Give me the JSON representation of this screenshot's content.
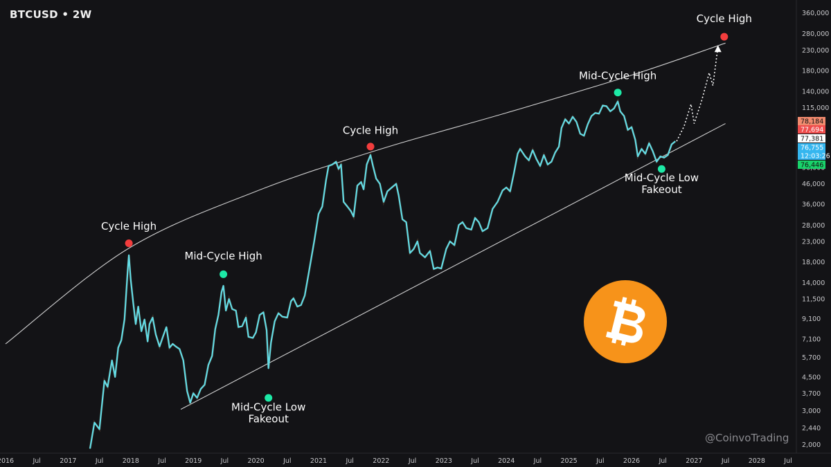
{
  "header": {
    "title": "BTCUSD • 2W"
  },
  "watermark": "@CoinvoTrading",
  "colors": {
    "background": "#131316",
    "price": "#62dce6",
    "cycle_high": "#f23d3d",
    "mid_cycle": "#1de9a6",
    "trendline": "#e6e6e6",
    "bitcoin": "#f7931a"
  },
  "logo_icon": "bitcoin-logo-icon",
  "chart_data": {
    "type": "line",
    "y_scale": "log",
    "ylim": [
      1800,
      420000
    ],
    "xlim": [
      2016.0,
      2028.5
    ],
    "y_ticks": [
      "360,000",
      "280,000",
      "230,000",
      "180,000",
      "140,000",
      "115,000",
      "56,000",
      "46,000",
      "36,000",
      "28,000",
      "23,000",
      "18,000",
      "14,000",
      "11,500",
      "9,100",
      "7,100",
      "5,700",
      "4,500",
      "3,700",
      "3,000",
      "2,440",
      "2,000"
    ],
    "x_ticks": [
      {
        "t": 2016.0,
        "label": "2016"
      },
      {
        "t": 2016.5,
        "label": "Jul"
      },
      {
        "t": 2017.0,
        "label": "2017"
      },
      {
        "t": 2017.5,
        "label": "Jul"
      },
      {
        "t": 2018.0,
        "label": "2018"
      },
      {
        "t": 2018.5,
        "label": "Jul"
      },
      {
        "t": 2019.0,
        "label": "2019"
      },
      {
        "t": 2019.5,
        "label": "Jul"
      },
      {
        "t": 2020.0,
        "label": "2020"
      },
      {
        "t": 2020.5,
        "label": "Jul"
      },
      {
        "t": 2021.0,
        "label": "2021"
      },
      {
        "t": 2021.5,
        "label": "Jul"
      },
      {
        "t": 2022.0,
        "label": "2022"
      },
      {
        "t": 2022.5,
        "label": "Jul"
      },
      {
        "t": 2023.0,
        "label": "2023"
      },
      {
        "t": 2023.5,
        "label": "Jul"
      },
      {
        "t": 2024.0,
        "label": "2024"
      },
      {
        "t": 2024.5,
        "label": "Jul"
      },
      {
        "t": 2025.0,
        "label": "2025"
      },
      {
        "t": 2025.5,
        "label": "Jul"
      },
      {
        "t": 2026.0,
        "label": "2026"
      },
      {
        "t": 2026.5,
        "label": "Jul"
      },
      {
        "t": 2027.0,
        "label": "2027"
      },
      {
        "t": 2027.5,
        "label": "Jul"
      },
      {
        "t": 2028.0,
        "label": "2028"
      },
      {
        "t": 2028.5,
        "label": "Jul"
      }
    ],
    "price_badges": [
      {
        "label": "78,184",
        "y": 78184,
        "bg": "#f08a6e",
        "fg": "#111111"
      },
      {
        "label": "77,694",
        "y": 77694,
        "bg": "#ef4d4d",
        "fg": "#ffffff"
      },
      {
        "label": "77,381",
        "y": 77381,
        "bg": "#ffffff",
        "fg": "#111111"
      },
      {
        "label": "76,755",
        "y": 76755,
        "bg": "#35b6ef",
        "fg": "#ffffff"
      },
      {
        "label": "12:03:26",
        "y": 76000,
        "bg": "#35b6ef",
        "fg": "#ffffff"
      },
      {
        "label": "76,446",
        "y": 76446,
        "bg": "#19d36b",
        "fg": "#111111"
      }
    ],
    "series": [
      {
        "values": [
          [
            2017.35,
            1900
          ],
          [
            2017.42,
            2600
          ],
          [
            2017.5,
            2400
          ],
          [
            2017.58,
            4300
          ],
          [
            2017.63,
            4000
          ],
          [
            2017.7,
            5500
          ],
          [
            2017.75,
            4500
          ],
          [
            2017.8,
            6400
          ],
          [
            2017.85,
            7000
          ],
          [
            2017.9,
            9000
          ],
          [
            2017.95,
            16000
          ],
          [
            2017.97,
            19500
          ],
          [
            2018.0,
            14500
          ],
          [
            2018.04,
            11000
          ],
          [
            2018.08,
            8500
          ],
          [
            2018.12,
            10500
          ],
          [
            2018.17,
            7800
          ],
          [
            2018.22,
            9000
          ],
          [
            2018.27,
            6900
          ],
          [
            2018.3,
            8500
          ],
          [
            2018.35,
            9200
          ],
          [
            2018.4,
            7500
          ],
          [
            2018.46,
            6500
          ],
          [
            2018.52,
            7400
          ],
          [
            2018.57,
            8200
          ],
          [
            2018.62,
            6400
          ],
          [
            2018.67,
            6700
          ],
          [
            2018.72,
            6500
          ],
          [
            2018.78,
            6300
          ],
          [
            2018.84,
            5500
          ],
          [
            2018.9,
            3800
          ],
          [
            2018.95,
            3300
          ],
          [
            2019.0,
            3700
          ],
          [
            2019.06,
            3500
          ],
          [
            2019.12,
            3900
          ],
          [
            2019.18,
            4100
          ],
          [
            2019.24,
            5200
          ],
          [
            2019.3,
            5800
          ],
          [
            2019.35,
            8000
          ],
          [
            2019.4,
            9500
          ],
          [
            2019.45,
            12500
          ],
          [
            2019.48,
            13500
          ],
          [
            2019.52,
            10000
          ],
          [
            2019.57,
            11500
          ],
          [
            2019.62,
            10200
          ],
          [
            2019.68,
            10000
          ],
          [
            2019.72,
            8200
          ],
          [
            2019.78,
            8300
          ],
          [
            2019.84,
            9200
          ],
          [
            2019.88,
            7300
          ],
          [
            2019.95,
            7200
          ],
          [
            2020.0,
            7700
          ],
          [
            2020.06,
            9500
          ],
          [
            2020.12,
            9800
          ],
          [
            2020.17,
            7900
          ],
          [
            2020.2,
            5000
          ],
          [
            2020.24,
            6800
          ],
          [
            2020.3,
            8800
          ],
          [
            2020.36,
            9700
          ],
          [
            2020.42,
            9300
          ],
          [
            2020.5,
            9200
          ],
          [
            2020.56,
            11200
          ],
          [
            2020.6,
            11600
          ],
          [
            2020.66,
            10500
          ],
          [
            2020.72,
            10700
          ],
          [
            2020.78,
            12000
          ],
          [
            2020.84,
            15500
          ],
          [
            2020.88,
            18500
          ],
          [
            2020.93,
            23000
          ],
          [
            2021.0,
            32000
          ],
          [
            2021.06,
            35000
          ],
          [
            2021.12,
            48000
          ],
          [
            2021.16,
            57000
          ],
          [
            2021.22,
            58000
          ],
          [
            2021.28,
            60000
          ],
          [
            2021.32,
            55000
          ],
          [
            2021.36,
            58000
          ],
          [
            2021.4,
            37000
          ],
          [
            2021.46,
            35000
          ],
          [
            2021.52,
            33000
          ],
          [
            2021.56,
            31000
          ],
          [
            2021.62,
            45000
          ],
          [
            2021.68,
            47000
          ],
          [
            2021.72,
            43000
          ],
          [
            2021.77,
            58000
          ],
          [
            2021.83,
            65000
          ],
          [
            2021.87,
            57000
          ],
          [
            2021.92,
            49000
          ],
          [
            2021.98,
            46000
          ],
          [
            2022.04,
            37000
          ],
          [
            2022.1,
            42000
          ],
          [
            2022.17,
            44000
          ],
          [
            2022.24,
            46000
          ],
          [
            2022.28,
            40000
          ],
          [
            2022.34,
            30000
          ],
          [
            2022.4,
            29000
          ],
          [
            2022.46,
            20000
          ],
          [
            2022.52,
            21000
          ],
          [
            2022.58,
            23000
          ],
          [
            2022.62,
            20000
          ],
          [
            2022.7,
            19000
          ],
          [
            2022.78,
            20500
          ],
          [
            2022.84,
            16500
          ],
          [
            2022.9,
            16800
          ],
          [
            2022.96,
            16600
          ],
          [
            2023.04,
            21000
          ],
          [
            2023.1,
            23000
          ],
          [
            2023.17,
            22000
          ],
          [
            2023.24,
            28000
          ],
          [
            2023.3,
            29000
          ],
          [
            2023.36,
            27000
          ],
          [
            2023.44,
            26500
          ],
          [
            2023.5,
            30500
          ],
          [
            2023.56,
            29000
          ],
          [
            2023.62,
            26000
          ],
          [
            2023.7,
            27000
          ],
          [
            2023.78,
            34000
          ],
          [
            2023.86,
            37000
          ],
          [
            2023.94,
            42500
          ],
          [
            2024.0,
            44000
          ],
          [
            2024.06,
            42000
          ],
          [
            2024.12,
            52000
          ],
          [
            2024.18,
            66000
          ],
          [
            2024.22,
            70000
          ],
          [
            2024.3,
            64000
          ],
          [
            2024.36,
            61000
          ],
          [
            2024.42,
            69000
          ],
          [
            2024.48,
            62000
          ],
          [
            2024.54,
            57000
          ],
          [
            2024.6,
            65000
          ],
          [
            2024.66,
            58000
          ],
          [
            2024.72,
            60000
          ],
          [
            2024.78,
            67000
          ],
          [
            2024.84,
            72000
          ],
          [
            2024.88,
            90000
          ],
          [
            2024.94,
            100000
          ],
          [
            2025.0,
            95000
          ],
          [
            2025.06,
            103000
          ],
          [
            2025.12,
            97000
          ],
          [
            2025.18,
            84000
          ],
          [
            2025.24,
            82000
          ],
          [
            2025.3,
            94000
          ],
          [
            2025.36,
            104000
          ],
          [
            2025.42,
            108000
          ],
          [
            2025.48,
            107000
          ],
          [
            2025.54,
            118000
          ],
          [
            2025.6,
            117000
          ],
          [
            2025.66,
            110000
          ],
          [
            2025.72,
            114000
          ],
          [
            2025.78,
            124000
          ],
          [
            2025.82,
            110000
          ],
          [
            2025.88,
            104000
          ],
          [
            2025.94,
            88000
          ],
          [
            2026.0,
            91000
          ],
          [
            2026.06,
            78000
          ],
          [
            2026.1,
            64000
          ],
          [
            2026.16,
            70000
          ],
          [
            2026.22,
            66000
          ],
          [
            2026.28,
            75000
          ],
          [
            2026.34,
            68000
          ],
          [
            2026.4,
            60000
          ],
          [
            2026.46,
            64000
          ],
          [
            2026.52,
            63000
          ],
          [
            2026.58,
            65000
          ],
          [
            2026.64,
            74000
          ],
          [
            2026.7,
            76755
          ]
        ]
      },
      {
        "values": [
          [
            2026.72,
            76755
          ],
          [
            2026.84,
            92000
          ],
          [
            2026.95,
            120000
          ],
          [
            2027.0,
            95000
          ],
          [
            2027.12,
            125000
          ],
          [
            2027.24,
            175000
          ],
          [
            2027.3,
            150000
          ],
          [
            2027.38,
            240000
          ]
        ]
      }
    ],
    "trendlines": [
      {
        "name": "upper-channel",
        "points": [
          [
            2016.0,
            6700
          ],
          [
            2017.95,
            21000
          ],
          [
            2020.0,
            42000
          ],
          [
            2022.0,
            70000
          ],
          [
            2024.0,
            108000
          ],
          [
            2026.0,
            170000
          ],
          [
            2027.5,
            250000
          ]
        ]
      },
      {
        "name": "lower-channel",
        "points": [
          [
            2018.8,
            3050
          ],
          [
            2027.5,
            95000
          ]
        ]
      }
    ],
    "annotations": [
      {
        "label": "Cycle High",
        "line2": "",
        "x": 2017.97,
        "y": 22500,
        "color": "#f23d3d",
        "text_y": 26500,
        "below": false
      },
      {
        "label": "Mid-Cycle High",
        "line2": "",
        "x": 2019.48,
        "y": 15500,
        "color": "#1de9a6",
        "text_y": 18500,
        "below": false
      },
      {
        "label": "Mid-Cycle Low",
        "line2": "Fakeout",
        "x": 2020.2,
        "y": 3500,
        "color": "#1de9a6",
        "text_y": 3000,
        "below": true
      },
      {
        "label": "Cycle High",
        "line2": "",
        "x": 2021.83,
        "y": 72000,
        "color": "#f23d3d",
        "text_y": 84000,
        "below": false
      },
      {
        "label": "Mid-Cycle High",
        "line2": "",
        "x": 2025.78,
        "y": 138000,
        "color": "#1de9a6",
        "text_y": 162000,
        "below": false
      },
      {
        "label": "Mid-Cycle Low",
        "line2": "Fakeout",
        "x": 2026.48,
        "y": 55000,
        "color": "#1de9a6",
        "text_y": 47500,
        "below": true
      },
      {
        "label": "Cycle High",
        "line2": "",
        "x": 2027.48,
        "y": 270000,
        "color": "#f23d3d",
        "text_y": 322000,
        "below": false
      }
    ]
  }
}
